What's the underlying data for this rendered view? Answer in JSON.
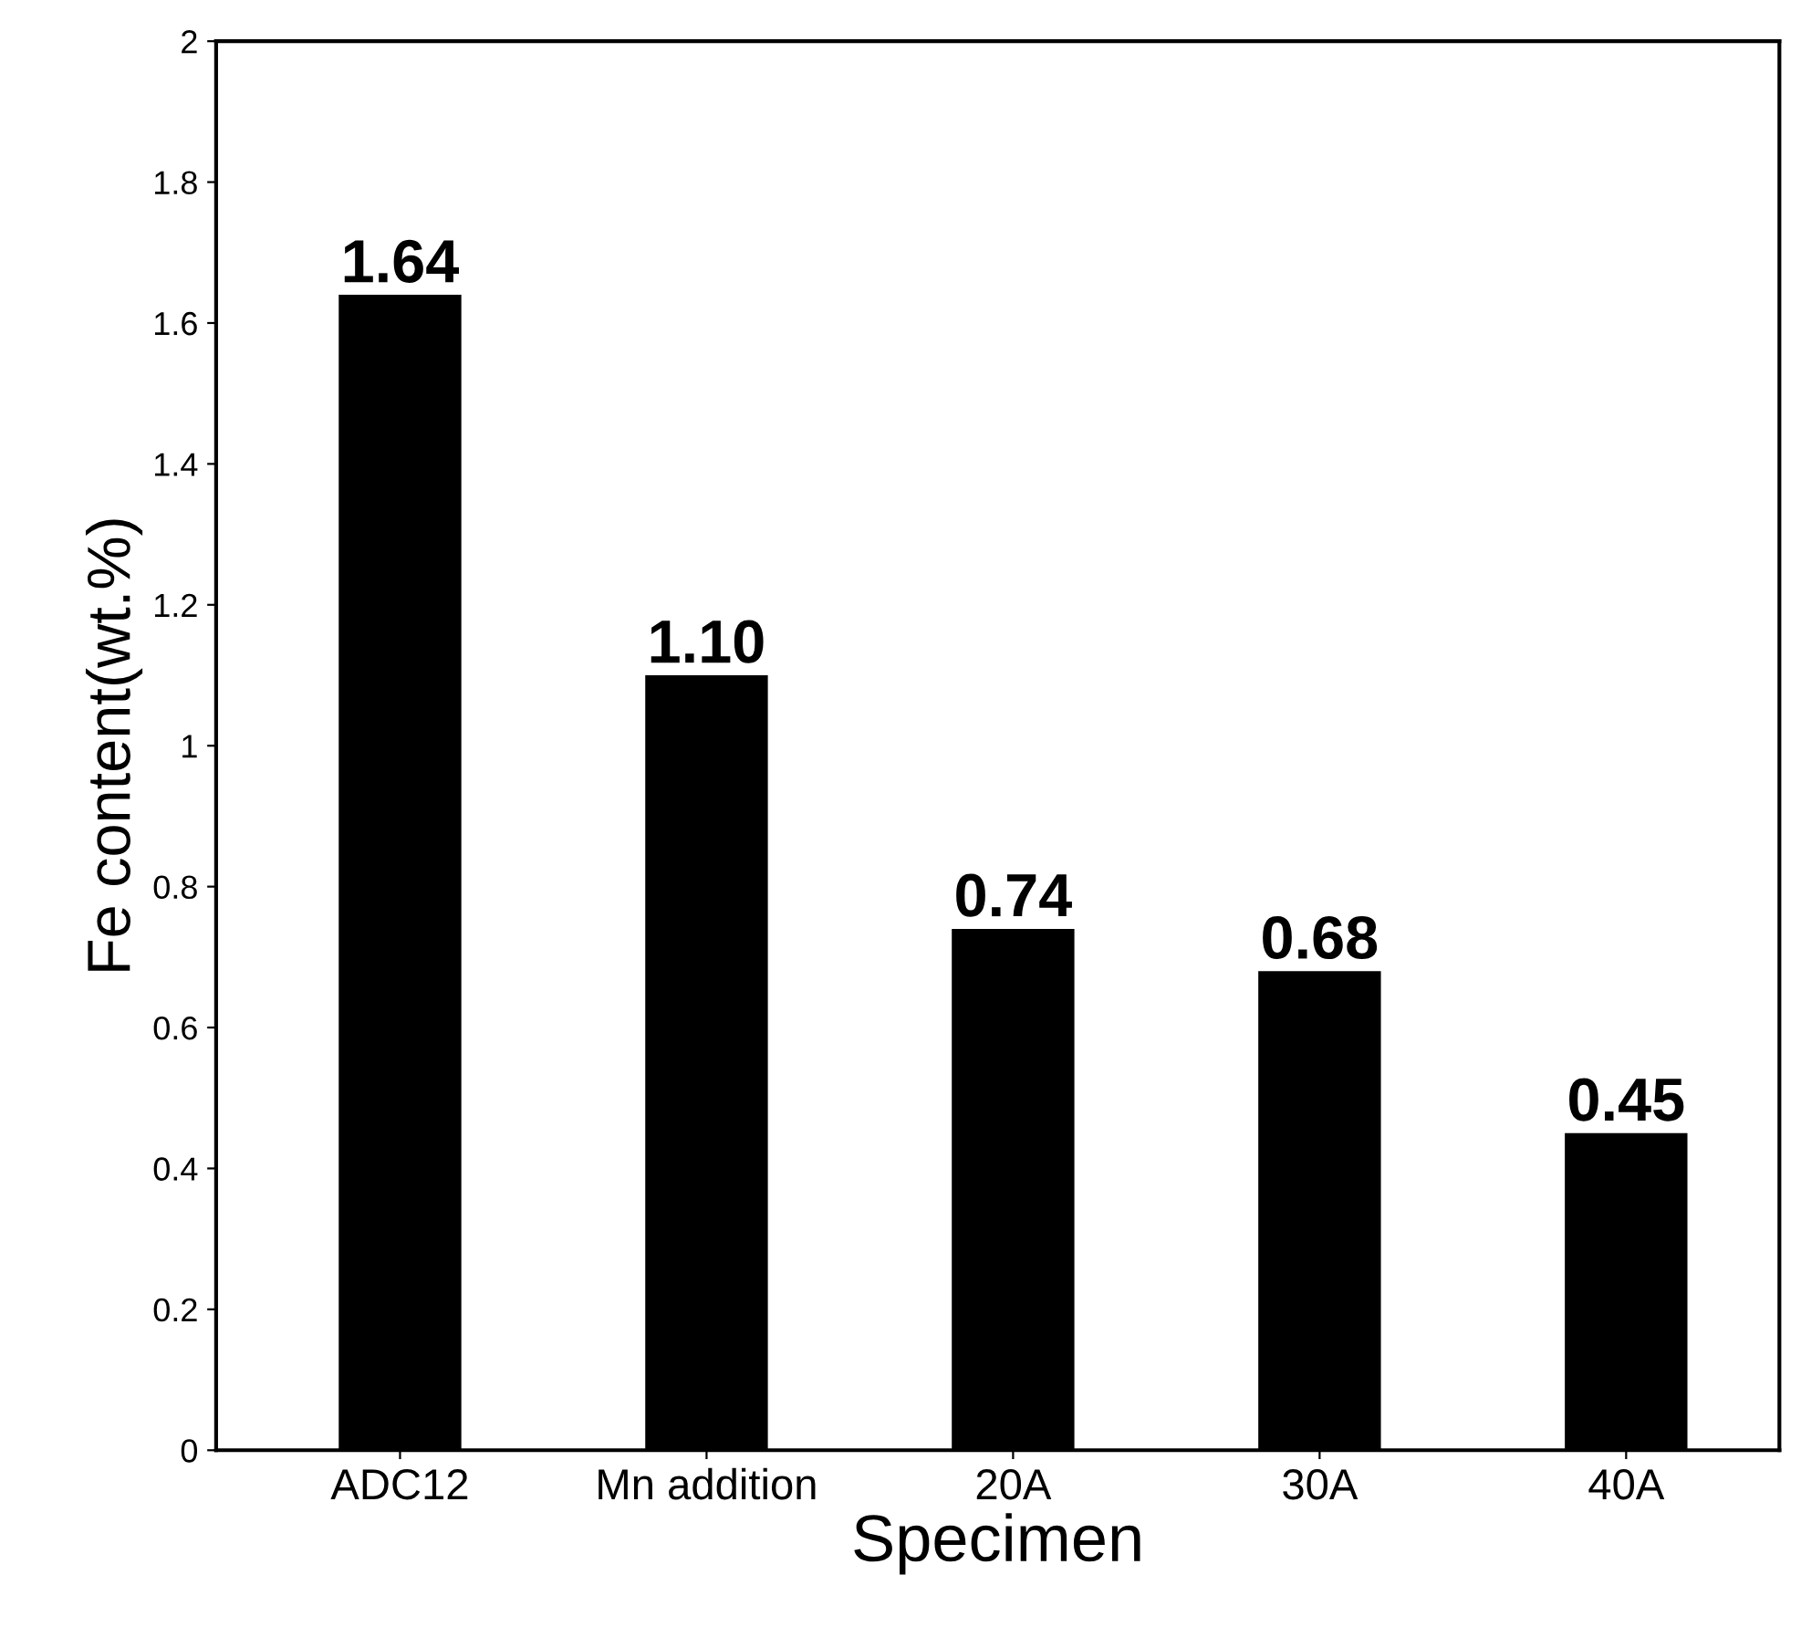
{
  "chart_data": {
    "type": "bar",
    "xlabel": "Specimen",
    "ylabel": "Fe content(wt.%)",
    "categories": [
      "ADC12",
      "Mn addition",
      "20A",
      "30A",
      "40A"
    ],
    "values": [
      1.64,
      1.1,
      0.74,
      0.68,
      0.45
    ],
    "value_labels": [
      "1.64",
      "1.10",
      "0.74",
      "0.68",
      "0.45"
    ],
    "color": "#000000",
    "ylim": [
      0,
      2
    ],
    "yticks": [
      0,
      0.2,
      0.4,
      0.6,
      0.8,
      1,
      1.2,
      1.4,
      1.6,
      1.8,
      2
    ],
    "grid": false,
    "legend": false
  }
}
